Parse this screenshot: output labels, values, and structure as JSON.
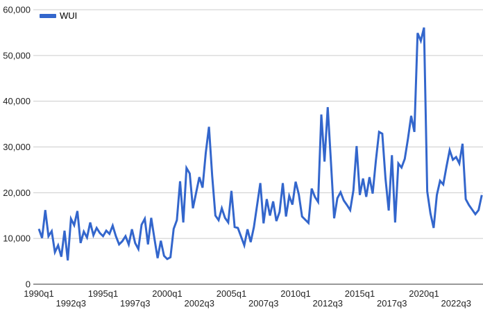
{
  "legend": {
    "items": [
      {
        "label": "WUI",
        "color": "#3366cc"
      }
    ]
  },
  "colors": {
    "line": "#3366cc",
    "gridline": "#cccccc",
    "baseline": "#333333",
    "axis_text": "#222222",
    "background": "#ffffff"
  },
  "chart_data": {
    "type": "line",
    "title": "",
    "xlabel": "",
    "ylabel": "",
    "legend_position": "top-left",
    "grid": true,
    "ylim": [
      0,
      60000
    ],
    "y_ticks": [
      {
        "value": 0,
        "label": "0"
      },
      {
        "value": 10000,
        "label": "10,000"
      },
      {
        "value": 20000,
        "label": "20,000"
      },
      {
        "value": 30000,
        "label": "30,000"
      },
      {
        "value": 40000,
        "label": "40,000"
      },
      {
        "value": 50000,
        "label": "50,000"
      },
      {
        "value": 60000,
        "label": "60,000"
      }
    ],
    "x_ticks": [
      {
        "q": 0,
        "label": "1990q1",
        "row": 1
      },
      {
        "q": 10,
        "label": "1992q3",
        "row": 2
      },
      {
        "q": 20,
        "label": "1995q1",
        "row": 1
      },
      {
        "q": 30,
        "label": "1997q3",
        "row": 2
      },
      {
        "q": 40,
        "label": "2000q1",
        "row": 1
      },
      {
        "q": 50,
        "label": "2002q3",
        "row": 2
      },
      {
        "q": 60,
        "label": "2005q1",
        "row": 1
      },
      {
        "q": 70,
        "label": "2007q3",
        "row": 2
      },
      {
        "q": 80,
        "label": "2010q1",
        "row": 1
      },
      {
        "q": 90,
        "label": "2012q3",
        "row": 2
      },
      {
        "q": 100,
        "label": "2015q1",
        "row": 1
      },
      {
        "q": 110,
        "label": "2017q3",
        "row": 2
      },
      {
        "q": 120,
        "label": "2020q1",
        "row": 1
      },
      {
        "q": 130,
        "label": "2022q3",
        "row": 2
      }
    ],
    "categories": [
      "1990q1",
      "1990q2",
      "1990q3",
      "1990q4",
      "1991q1",
      "1991q2",
      "1991q3",
      "1991q4",
      "1992q1",
      "1992q2",
      "1992q3",
      "1992q4",
      "1993q1",
      "1993q2",
      "1993q3",
      "1993q4",
      "1994q1",
      "1994q2",
      "1994q3",
      "1994q4",
      "1995q1",
      "1995q2",
      "1995q3",
      "1995q4",
      "1996q1",
      "1996q2",
      "1996q3",
      "1996q4",
      "1997q1",
      "1997q2",
      "1997q3",
      "1997q4",
      "1998q1",
      "1998q2",
      "1998q3",
      "1998q4",
      "1999q1",
      "1999q2",
      "1999q3",
      "1999q4",
      "2000q1",
      "2000q2",
      "2000q3",
      "2000q4",
      "2001q1",
      "2001q2",
      "2001q3",
      "2001q4",
      "2002q1",
      "2002q2",
      "2002q3",
      "2002q4",
      "2003q1",
      "2003q2",
      "2003q3",
      "2003q4",
      "2004q1",
      "2004q2",
      "2004q3",
      "2004q4",
      "2005q1",
      "2005q2",
      "2005q3",
      "2005q4",
      "2006q1",
      "2006q2",
      "2006q3",
      "2006q4",
      "2007q1",
      "2007q2",
      "2007q3",
      "2007q4",
      "2008q1",
      "2008q2",
      "2008q3",
      "2008q4",
      "2009q1",
      "2009q2",
      "2009q3",
      "2009q4",
      "2010q1",
      "2010q2",
      "2010q3",
      "2010q4",
      "2011q1",
      "2011q2",
      "2011q3",
      "2011q4",
      "2012q1",
      "2012q2",
      "2012q3",
      "2012q4",
      "2013q1",
      "2013q2",
      "2013q3",
      "2013q4",
      "2014q1",
      "2014q2",
      "2014q3",
      "2014q4",
      "2015q1",
      "2015q2",
      "2015q3",
      "2015q4",
      "2016q1",
      "2016q2",
      "2016q3",
      "2016q4",
      "2017q1",
      "2017q2",
      "2017q3",
      "2017q4",
      "2018q1",
      "2018q2",
      "2018q3",
      "2018q4",
      "2019q1",
      "2019q2",
      "2019q3",
      "2019q4",
      "2020q1",
      "2020q2",
      "2020q3",
      "2020q4",
      "2021q1",
      "2021q2",
      "2021q3",
      "2021q4",
      "2022q1",
      "2022q2",
      "2022q3",
      "2022q4",
      "2023q1",
      "2023q2",
      "2023q3",
      "2023q4",
      "2024q1",
      "2024q2",
      "2024q3"
    ],
    "series": [
      {
        "name": "WUI",
        "values": [
          12100,
          10100,
          16200,
          10500,
          11600,
          7000,
          8500,
          6000,
          11700,
          5200,
          14300,
          12900,
          16000,
          9000,
          11500,
          10200,
          13500,
          10700,
          12300,
          11200,
          10500,
          11700,
          11000,
          12800,
          10500,
          8700,
          9400,
          10500,
          8700,
          12000,
          9000,
          7700,
          13000,
          14300,
          8700,
          14500,
          10000,
          5700,
          9500,
          6200,
          5500,
          5900,
          12100,
          14000,
          22500,
          13500,
          25400,
          24200,
          16600,
          20000,
          23400,
          21100,
          28700,
          34400,
          23700,
          15000,
          14000,
          16600,
          14500,
          13500,
          20400,
          12500,
          12300,
          10400,
          8500,
          12000,
          9200,
          12500,
          17300,
          22100,
          13300,
          18600,
          15000,
          18100,
          13800,
          15800,
          22100,
          14800,
          19300,
          17400,
          22400,
          19600,
          14800,
          14100,
          13400,
          20900,
          19100,
          18000,
          37100,
          26800,
          38700,
          26700,
          14400,
          18800,
          20100,
          18300,
          17300,
          16200,
          20500,
          30200,
          19500,
          23100,
          19100,
          23400,
          19800,
          27000,
          33300,
          32900,
          23100,
          16100,
          28200,
          13500,
          26400,
          25500,
          27400,
          31800,
          36800,
          33300,
          54900,
          53200,
          56100,
          20300,
          15500,
          12300,
          19500,
          22600,
          21800,
          25700,
          29300,
          27200,
          27800,
          26400,
          30700,
          18600,
          17300,
          16300,
          15300,
          16200,
          19500
        ]
      }
    ]
  }
}
